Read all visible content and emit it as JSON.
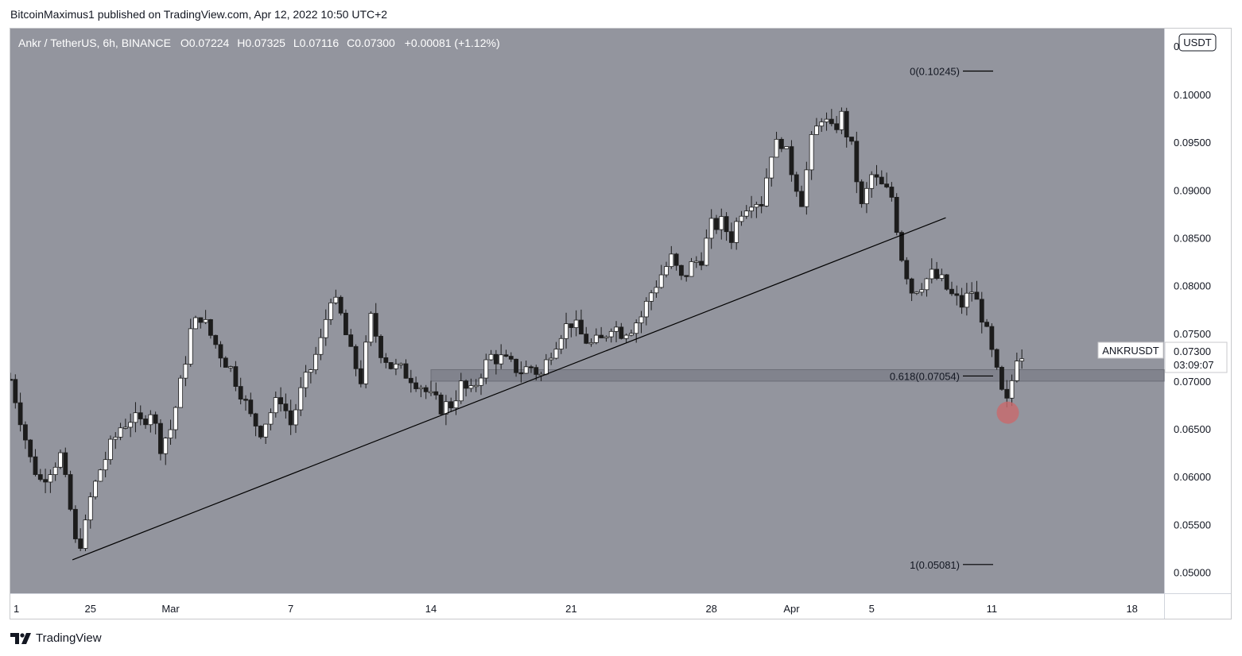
{
  "header": {
    "publish_line": "BitcoinMaximus1 published on TradingView.com, Apr 12, 2022 10:50 UTC+2"
  },
  "footer": {
    "brand": "TradingView"
  },
  "legend": {
    "symbol": "Ankr / TetherUS, 6h, BINANCE",
    "o_label": "O",
    "o_value": "0.07224",
    "h_label": "H",
    "h_value": "0.07325",
    "l_label": "L",
    "l_value": "0.07116",
    "c_label": "C",
    "c_value": "0.07300",
    "change": "+0.00081 (+1.12%)"
  },
  "axis": {
    "currency_badge": "USDT",
    "top_clip_label": "0"
  },
  "price_tag": {
    "symbol": "ANKRUSDT",
    "price": "0.07300",
    "countdown": "03:09:07"
  },
  "colors": {
    "chart_bg": "#93959e",
    "up_candle": "#ffffff",
    "down_candle": "#1c1c1c",
    "zone": "#7e8089",
    "highlight_circle": "#c9696b"
  },
  "chart_data": {
    "type": "candlestick",
    "symbol": "ANKRUSDT",
    "timeframe": "6h",
    "exchange": "BINANCE",
    "x_tick_labels": [
      "1",
      "25",
      "Mar",
      "7",
      "14",
      "21",
      "28",
      "Apr",
      "5",
      "11",
      "18"
    ],
    "x_tick_days": [
      21,
      25,
      29,
      35,
      42,
      49,
      56,
      60,
      64,
      70,
      77
    ],
    "x_range_days": [
      21,
      78.6
    ],
    "ylim": [
      0.0478,
      0.1069
    ],
    "y_ticks": [
      "0.05000",
      "0.05500",
      "0.06000",
      "0.06500",
      "0.07000",
      "0.07500",
      "0.08000",
      "0.08500",
      "0.09000",
      "0.09500",
      "0.10000"
    ],
    "fibonacci": [
      {
        "label": "0(0.10245)",
        "level": 0.10245
      },
      {
        "label": "0.618(0.07054)",
        "level": 0.07054
      },
      {
        "label": "1(0.05081)",
        "level": 0.05081
      }
    ],
    "support_zone": {
      "from_day": 42.0,
      "low": 0.07,
      "high": 0.0712
    },
    "trendline": {
      "p1": {
        "day": 24.1,
        "price": 0.0513
      },
      "p2": {
        "day": 67.7,
        "price": 0.0871
      }
    },
    "highlight": {
      "day": 70.8,
      "price": 0.0667
    },
    "grid": false,
    "close_path": [
      [
        21.0,
        0.0702
      ],
      [
        21.5,
        0.0662
      ],
      [
        22.0,
        0.0618
      ],
      [
        22.5,
        0.0596
      ],
      [
        23.0,
        0.0609
      ],
      [
        23.5,
        0.0622
      ],
      [
        24.0,
        0.0565
      ],
      [
        24.3,
        0.0523
      ],
      [
        24.7,
        0.0542
      ],
      [
        25.0,
        0.0577
      ],
      [
        25.5,
        0.0608
      ],
      [
        26.0,
        0.0631
      ],
      [
        26.5,
        0.0652
      ],
      [
        27.0,
        0.0661
      ],
      [
        27.5,
        0.0656
      ],
      [
        28.0,
        0.067
      ],
      [
        28.5,
        0.0633
      ],
      [
        29.0,
        0.065
      ],
      [
        29.5,
        0.0696
      ],
      [
        30.0,
        0.0752
      ],
      [
        30.5,
        0.0769
      ],
      [
        31.0,
        0.0748
      ],
      [
        31.5,
        0.0729
      ],
      [
        32.0,
        0.0713
      ],
      [
        32.5,
        0.069
      ],
      [
        33.0,
        0.0662
      ],
      [
        33.5,
        0.0649
      ],
      [
        34.0,
        0.0668
      ],
      [
        34.5,
        0.0683
      ],
      [
        35.0,
        0.0655
      ],
      [
        35.5,
        0.0688
      ],
      [
        36.0,
        0.0713
      ],
      [
        36.5,
        0.0741
      ],
      [
        37.0,
        0.079
      ],
      [
        37.5,
        0.0768
      ],
      [
        38.0,
        0.0728
      ],
      [
        38.5,
        0.0702
      ],
      [
        39.0,
        0.0765
      ],
      [
        39.5,
        0.0732
      ],
      [
        40.0,
        0.0716
      ],
      [
        40.5,
        0.0711
      ],
      [
        41.0,
        0.0705
      ],
      [
        41.5,
        0.0696
      ],
      [
        42.0,
        0.0682
      ],
      [
        42.5,
        0.0673
      ],
      [
        43.0,
        0.0676
      ],
      [
        43.5,
        0.0695
      ],
      [
        44.0,
        0.0687
      ],
      [
        44.5,
        0.071
      ],
      [
        45.0,
        0.0726
      ],
      [
        45.5,
        0.0723
      ],
      [
        46.0,
        0.0716
      ],
      [
        46.5,
        0.0711
      ],
      [
        47.0,
        0.0715
      ],
      [
        47.5,
        0.0706
      ],
      [
        48.0,
        0.0733
      ],
      [
        48.5,
        0.0752
      ],
      [
        49.0,
        0.0762
      ],
      [
        49.5,
        0.0748
      ],
      [
        50.0,
        0.0738
      ],
      [
        50.5,
        0.0742
      ],
      [
        51.0,
        0.076
      ],
      [
        51.5,
        0.0752
      ],
      [
        52.0,
        0.0757
      ],
      [
        52.5,
        0.0768
      ],
      [
        53.0,
        0.0793
      ],
      [
        53.5,
        0.0812
      ],
      [
        54.0,
        0.0828
      ],
      [
        54.5,
        0.0806
      ],
      [
        55.0,
        0.0821
      ],
      [
        55.5,
        0.083
      ],
      [
        56.0,
        0.0862
      ],
      [
        56.5,
        0.0865
      ],
      [
        57.0,
        0.0851
      ],
      [
        57.5,
        0.088
      ],
      [
        58.0,
        0.0891
      ],
      [
        58.5,
        0.0888
      ],
      [
        59.0,
        0.0941
      ],
      [
        59.5,
        0.0952
      ],
      [
        60.0,
        0.0921
      ],
      [
        60.5,
        0.089
      ],
      [
        61.0,
        0.095
      ],
      [
        61.5,
        0.0978
      ],
      [
        62.0,
        0.0961
      ],
      [
        62.5,
        0.0977
      ],
      [
        63.0,
        0.0943
      ],
      [
        63.5,
        0.0881
      ],
      [
        64.0,
        0.0915
      ],
      [
        64.5,
        0.0903
      ],
      [
        65.0,
        0.0893
      ],
      [
        65.5,
        0.0831
      ],
      [
        66.0,
        0.0795
      ],
      [
        66.5,
        0.0803
      ],
      [
        67.0,
        0.0811
      ],
      [
        67.5,
        0.0804
      ],
      [
        68.0,
        0.0789
      ],
      [
        68.5,
        0.078
      ],
      [
        69.0,
        0.0795
      ],
      [
        69.5,
        0.0769
      ],
      [
        70.0,
        0.0728
      ],
      [
        70.5,
        0.0686
      ],
      [
        70.8,
        0.0674
      ],
      [
        71.2,
        0.0728
      ],
      [
        71.5,
        0.073
      ]
    ]
  }
}
